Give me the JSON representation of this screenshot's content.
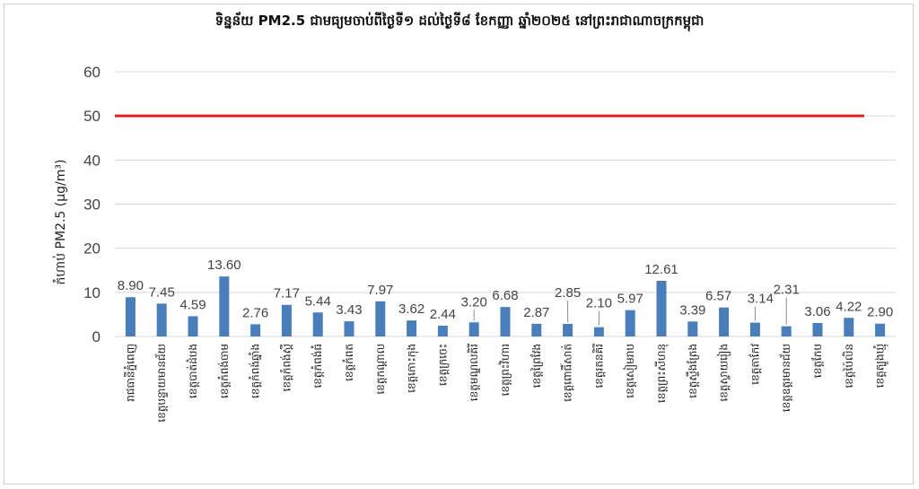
{
  "chart_data": {
    "type": "bar",
    "title": "ទិន្នន័យ PM2.5 ជាមធ្យមចាប់ពីថ្ងៃទី១ ដល់ថ្ងៃទី៨ ខែកញ្ញា ឆ្នាំ២០២៥ នៅព្រះរាជាណាចក្រកម្ពុជា",
    "ylabel": "កំហាប់ PM2.5 (µg/m³)",
    "ylim": [
      0,
      60
    ],
    "yticks": [
      "0",
      "10",
      "20",
      "30",
      "40",
      "50",
      "60"
    ],
    "threshold": {
      "value": 50,
      "color": "#e02020"
    },
    "bar_color": "#4a7ebb",
    "grid": true,
    "categories": [
      "រាជធានីភ្នំពេញ",
      "ខេត្តបន្ទាយមានជ័យ",
      "ខេត្តបាត់ដំបង",
      "ខេត្តកំពង់ចាម",
      "ខេត្តកំពង់ឆ្នាំង",
      "ខេត្តកំពង់ស្ពឺ",
      "ខេត្តកំពង់ធំ",
      "ខេត្តកំពត",
      "ខេត្តកណ្ដាល",
      "ខេត្តកោះកុង",
      "ខេត្តក្រចេះ",
      "ខេត្តមណ្ឌលគិរី",
      "ខេត្តព្រះវិហារ",
      "ខេត្តព្រៃវែង",
      "ខេត្តពោធិ៍សាត់",
      "ខេត្តរតនគិរី",
      "ខេត្តសៀមរាប",
      "ខេត្តព្រះសីហនុ",
      "ខេត្តស្ទឹងត្រែង",
      "ខេត្តស្វាយរៀង",
      "ខេត្តតាកែវ",
      "ខេត្តឧត្តរមានជ័យ",
      "ខេត្តកែប",
      "ខេត្តប៉ៃលិន",
      "ខេត្តត្បូងឃ្មុំ"
    ],
    "values": [
      8.9,
      7.45,
      4.59,
      13.6,
      2.76,
      7.17,
      5.44,
      3.43,
      7.97,
      3.62,
      2.44,
      3.2,
      6.68,
      2.87,
      2.85,
      2.1,
      5.97,
      12.61,
      3.39,
      6.57,
      3.14,
      2.31,
      3.06,
      4.22,
      2.9
    ],
    "data_labels": [
      "8.90",
      "7.45",
      "4.59",
      "13.60",
      "2.76",
      "7.17",
      "5.44",
      "3.43",
      "7.97",
      "3.62",
      "2.44",
      "3.20",
      "6.68",
      "2.87",
      "2.85",
      "2.10",
      "5.97",
      "12.61",
      "3.39",
      "6.57",
      "3.14",
      "2.31",
      "3.06",
      "4.22",
      "2.90"
    ]
  }
}
